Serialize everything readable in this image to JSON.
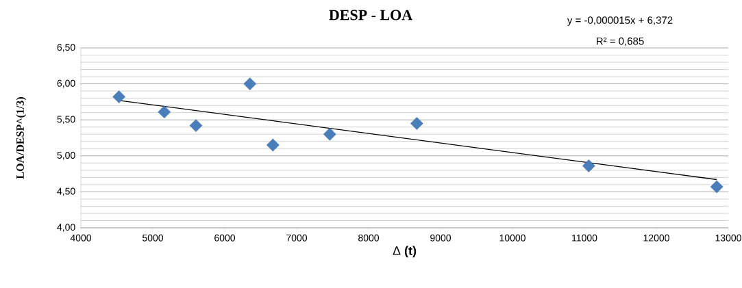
{
  "chart_data": {
    "type": "scatter",
    "title": "DESP - LOA",
    "xlabel": "Δ **(t)**",
    "ylabel": "LOA/DESP^(1/3)",
    "annotations": [
      "y = -0,000015x + 6,372",
      "R² = 0,685"
    ],
    "series": [
      {
        "color": "#4a7ebb",
        "marker": "diamond",
        "x": [
          4530,
          5160,
          5600,
          6350,
          6670,
          7460,
          8670,
          11060,
          12840
        ],
        "values": [
          5.82,
          5.61,
          5.42,
          6.0,
          5.15,
          5.3,
          5.45,
          4.86,
          4.57
        ]
      },
      {
        "type": "line",
        "color": "#000000",
        "marker": "none",
        "line_style": "solid",
        "x": [
          4530,
          12840
        ],
        "values": [
          5.77,
          4.67
        ]
      }
    ],
    "xlim": [
      4000,
      13000
    ],
    "xticks": [
      4000,
      5000,
      6000,
      7000,
      8000,
      9000,
      10000,
      11000,
      12000,
      13000
    ],
    "ylim": [
      4.0,
      6.5
    ],
    "yticks": [
      {
        "value": 4.0,
        "label": "4,00"
      },
      {
        "value": 4.5,
        "label": "4,50"
      },
      {
        "value": 5.0,
        "label": "5,00"
      },
      {
        "value": 5.5,
        "label": "5,50"
      },
      {
        "value": 6.0,
        "label": "6,00"
      },
      {
        "value": 6.5,
        "label": "6,50"
      }
    ],
    "grid": "y"
  }
}
